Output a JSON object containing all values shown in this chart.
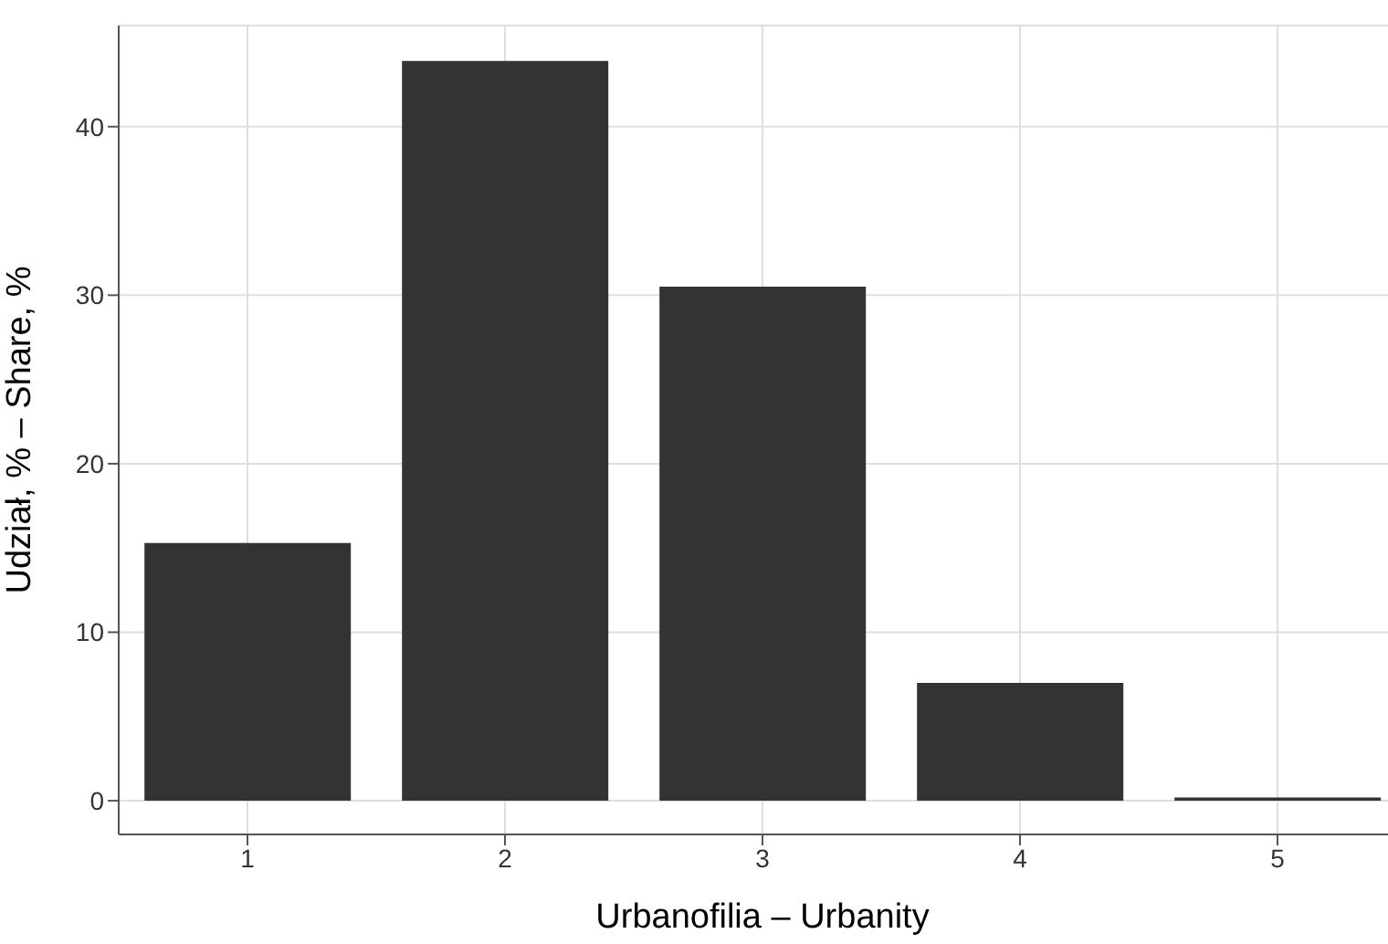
{
  "chart_data": {
    "type": "bar",
    "xlabel": "Urbanofilia – Urbanity",
    "ylabel": "Udział, % – Share, %",
    "categories": [
      "1",
      "2",
      "3",
      "4",
      "5"
    ],
    "values": [
      15.3,
      43.9,
      30.5,
      7.0,
      0.2
    ],
    "color": "#333333",
    "ylim": [
      -2,
      46
    ],
    "yticks": [
      0,
      10,
      20,
      30,
      40
    ],
    "grid": true
  }
}
